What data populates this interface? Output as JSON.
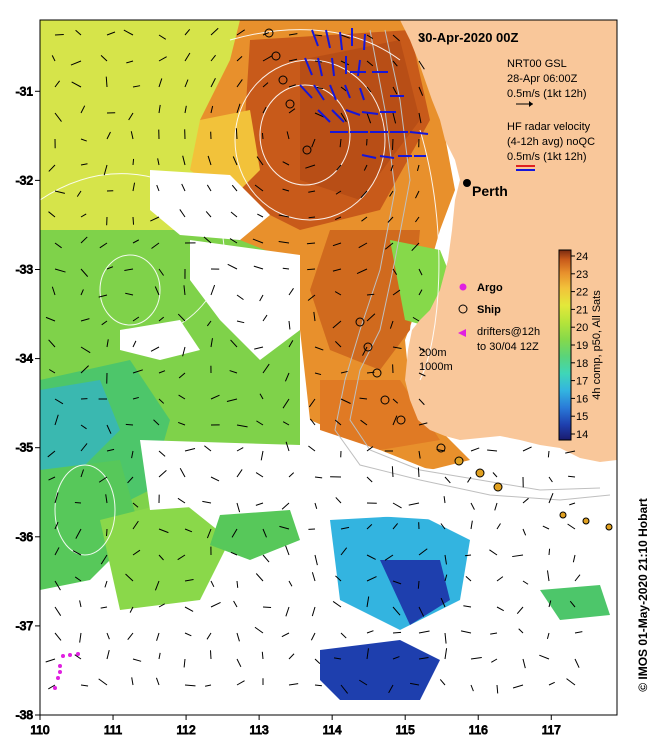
{
  "map": {
    "title": "30-Apr-2020 00Z",
    "place_label": "Perth",
    "lon_ticks": [
      "110",
      "111",
      "112",
      "113",
      "114",
      "115",
      "116",
      "117"
    ],
    "lat_ticks": [
      "-31",
      "-32",
      "-33",
      "-34",
      "-35",
      "-36",
      "-37",
      "-38"
    ],
    "lon_range": [
      110,
      117.9
    ],
    "lat_range": [
      -38,
      -30.2
    ]
  },
  "legend": {
    "nrt_line1": "NRT00 GSL",
    "nrt_line2": "28-Apr 06:00Z",
    "nrt_line3": "0.5m/s (1kt 12h)",
    "hf_line1": "HF radar velocity",
    "hf_line2": "(4-12h avg) noQC",
    "hf_line3": "0.5m/s (1kt 12h)",
    "argo_label": "Argo",
    "ship_label": "Ship",
    "drifter_line1": "drifters@12h",
    "drifter_line2": "to 30/04 12Z",
    "iso_line1": "200m",
    "iso_line2": "1000m"
  },
  "colorbar": {
    "ticks": [
      "24",
      "23",
      "22",
      "21",
      "20",
      "19",
      "18",
      "17",
      "16",
      "15",
      "14"
    ],
    "label": "4h comp, p50, All Sats",
    "range": [
      14,
      24
    ],
    "colors": [
      "#1a1a6e",
      "#1e3fae",
      "#2a7ad8",
      "#33b4e0",
      "#3fd6b8",
      "#5ad47a",
      "#86d94a",
      "#b6e43a",
      "#e4e83a",
      "#f2c23a",
      "#e8902c",
      "#c85a1a",
      "#7a2a10"
    ]
  },
  "credit": "© IMOS 01-May-2020 21:10 Hobart",
  "colors": {
    "land": "#f9c79a",
    "frame": "#000000",
    "hf_arrow_blue": "#1616d8",
    "hf_arrow_red": "#e02020",
    "argo": "#e020e0",
    "ship_path": "#e0a020"
  }
}
